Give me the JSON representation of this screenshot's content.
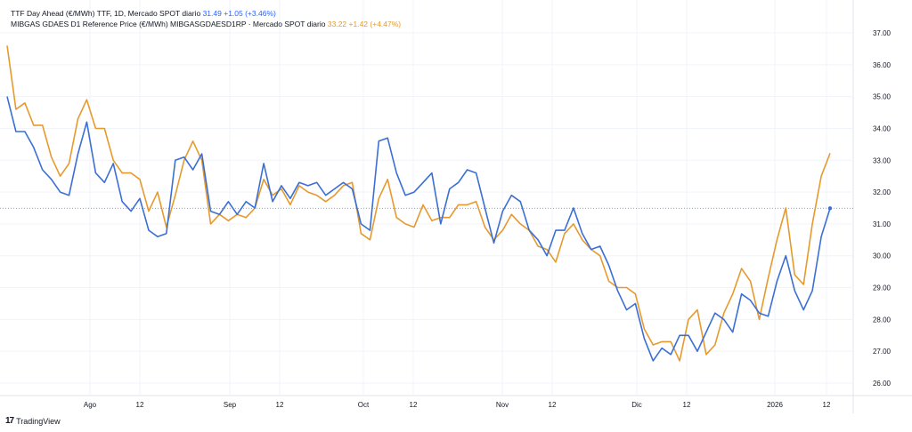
{
  "legend": {
    "ttf": {
      "name": "TTF Day Ahead (€/MWh) TTF, 1D, Mercado SPOT diario",
      "last": "31.49",
      "change": "+1.05 (+3.46%)"
    },
    "mibgas": {
      "name": "MIBGAS GDAES D1 Reference Price (€/MWh) MIBGASGDAESD1RP · Mercado SPOT diario",
      "last": "33.22",
      "change": "+1.42 (+4.47%)"
    }
  },
  "branding": {
    "logo_text": "TradingView"
  },
  "colors": {
    "ttf": "#3b6fd6",
    "mibgas": "#e69a2e",
    "grid": "#f0f3fa"
  },
  "chart_data": {
    "type": "line",
    "title": "",
    "xlabel": "",
    "ylabel": "€/MWh",
    "ylim": [
      26,
      37
    ],
    "y_ticks": [
      "26.00",
      "27.00",
      "28.00",
      "29.00",
      "30.00",
      "31.00",
      "32.00",
      "33.00",
      "34.00",
      "35.00",
      "36.00",
      "37.00"
    ],
    "x_ticks": [
      "Ago",
      "12",
      "Sep",
      "12",
      "Oct",
      "12",
      "Nov",
      "12",
      "Dic",
      "12",
      "2026",
      "12"
    ],
    "last_price_line": 31.49,
    "legend_position": "top-left",
    "grid": true,
    "series": [
      {
        "name": "TTF Day Ahead",
        "values": [
          35.0,
          33.9,
          33.9,
          33.4,
          32.7,
          32.4,
          32.0,
          31.9,
          33.2,
          34.2,
          32.6,
          32.3,
          32.9,
          31.7,
          31.4,
          31.8,
          30.8,
          30.6,
          30.7,
          33.0,
          33.1,
          32.7,
          33.2,
          31.4,
          31.3,
          31.7,
          31.3,
          31.7,
          31.5,
          32.9,
          31.7,
          32.2,
          31.8,
          32.3,
          32.2,
          32.3,
          31.9,
          32.1,
          32.3,
          32.1,
          31.0,
          30.8,
          33.6,
          33.7,
          32.6,
          31.9,
          32.0,
          32.3,
          32.6,
          31.0,
          32.1,
          32.3,
          32.7,
          32.6,
          31.5,
          30.4,
          31.4,
          31.9,
          31.7,
          30.8,
          30.5,
          30.0,
          30.8,
          30.8,
          31.5,
          30.7,
          30.2,
          30.3,
          29.7,
          28.9,
          28.3,
          28.5,
          27.4,
          26.7,
          27.1,
          26.9,
          27.5,
          27.5,
          27.0,
          27.6,
          28.2,
          28.0,
          27.6,
          28.8,
          28.6,
          28.2,
          28.1,
          29.2,
          30.0,
          28.9,
          28.3,
          28.9,
          30.6,
          31.49
        ]
      },
      {
        "name": "MIBGAS GDAES D1",
        "values": [
          36.6,
          34.6,
          34.8,
          34.1,
          34.1,
          33.1,
          32.5,
          32.9,
          34.3,
          34.9,
          34.0,
          34.0,
          33.0,
          32.6,
          32.6,
          32.4,
          31.4,
          32.0,
          30.9,
          31.9,
          33.0,
          33.6,
          33.0,
          31.0,
          31.3,
          31.1,
          31.3,
          31.2,
          31.5,
          32.4,
          31.9,
          32.1,
          31.6,
          32.2,
          32.0,
          31.9,
          31.7,
          31.9,
          32.2,
          32.3,
          30.7,
          30.5,
          31.8,
          32.4,
          31.2,
          31.0,
          30.9,
          31.6,
          31.1,
          31.2,
          31.2,
          31.6,
          31.6,
          31.7,
          30.9,
          30.5,
          30.8,
          31.3,
          31.0,
          30.8,
          30.3,
          30.2,
          29.8,
          30.7,
          31.0,
          30.5,
          30.2,
          30.0,
          29.2,
          29.0,
          29.0,
          28.8,
          27.7,
          27.2,
          27.3,
          27.3,
          26.7,
          28.0,
          28.3,
          26.9,
          27.2,
          28.2,
          28.8,
          29.6,
          29.2,
          28.0,
          29.3,
          30.5,
          31.5,
          29.4,
          29.1,
          31.0,
          32.5,
          33.22
        ]
      }
    ]
  }
}
